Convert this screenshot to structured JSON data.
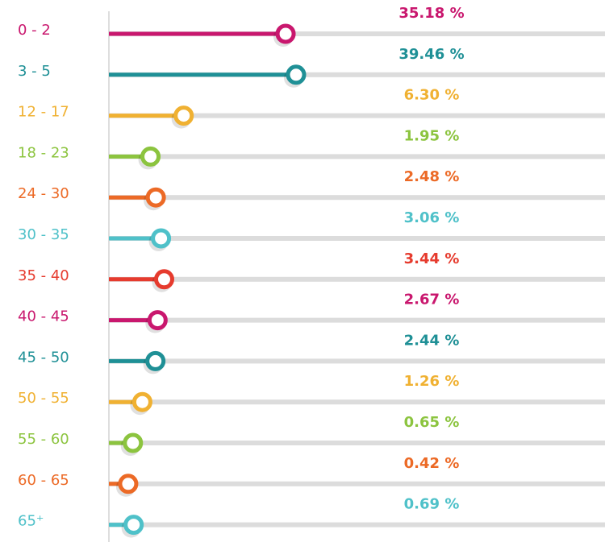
{
  "chart_data": {
    "type": "lollipop",
    "categories": [
      "0 - 2",
      "3 - 5",
      "12 - 17",
      "18 - 23",
      "24 - 30",
      "30 - 35",
      "35 - 40",
      "40 - 45",
      "45 - 50",
      "50 - 55",
      "55 - 60",
      "60 - 65",
      "65⁺"
    ],
    "values": [
      35.18,
      39.46,
      6.3,
      1.95,
      2.48,
      3.06,
      3.44,
      2.67,
      2.44,
      1.26,
      0.65,
      0.42,
      0.69
    ],
    "value_labels": [
      "35.18 %",
      "39.46 %",
      "6.30 %",
      "1.95 %",
      "2.48 %",
      "3.06 %",
      "3.44 %",
      "2.67 %",
      "2.44 %",
      "1.26 %",
      "0.65 %",
      "0.42 %",
      "0.69 %"
    ],
    "colors": [
      "#c9176e",
      "#1f9096",
      "#f0b132",
      "#8cc43f",
      "#ec6a26",
      "#4fc1c9",
      "#e63b2e",
      "#c9176e",
      "#1f9096",
      "#f0b132",
      "#8cc43f",
      "#ec6a26",
      "#4fc1c9"
    ],
    "xscale": "sqrt"
  }
}
